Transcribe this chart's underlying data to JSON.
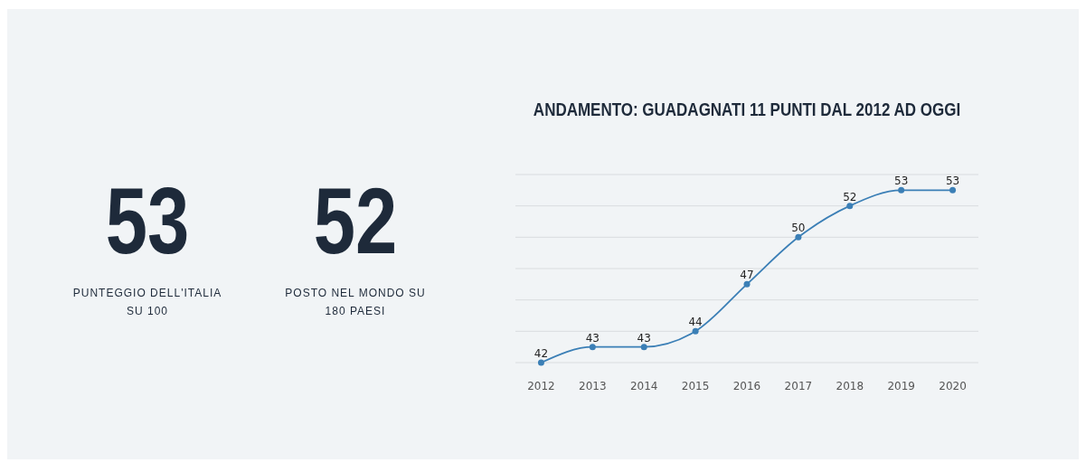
{
  "chart_data": [
    {
      "type": "other",
      "categories": [
        "PUNTEGGIO DELL'ITALIA SU 100",
        "POSTO NEL MONDO SU 180 PAESI"
      ],
      "values": [
        53,
        52
      ],
      "data_labels": true
    },
    {
      "type": "line",
      "title": "ANDAMENTO: GUADAGNATI 11 PUNTI DAL 2012 AD OGGI",
      "categories": [
        "2012",
        "2013",
        "2014",
        "2015",
        "2016",
        "2017",
        "2018",
        "2019",
        "2020"
      ],
      "series": [
        {
          "color": "#3b7fb6",
          "values": [
            42,
            43,
            43,
            44,
            47,
            50,
            52,
            53,
            53
          ]
        }
      ],
      "ylim": [
        42,
        54
      ],
      "yticks": [
        {
          "value": 42,
          "label": null
        },
        {
          "value": 44,
          "label": null
        },
        {
          "value": 46,
          "label": null
        },
        {
          "value": 48,
          "label": null
        },
        {
          "value": 50,
          "label": null
        },
        {
          "value": 52,
          "label": null
        },
        {
          "value": 54,
          "label": null
        }
      ],
      "tick_labels": "x",
      "grid": "y",
      "marker": "circle",
      "data_labels": true
    }
  ]
}
